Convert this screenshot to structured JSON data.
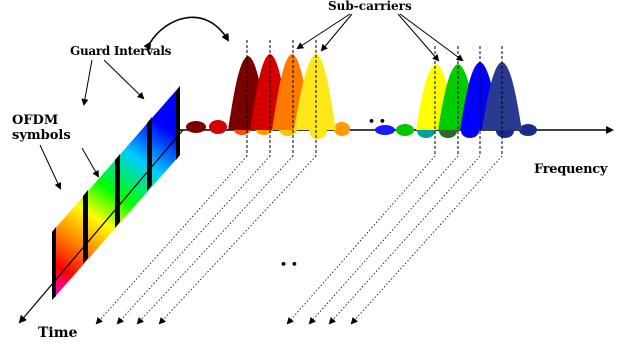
{
  "labels": {
    "subcarriers": "Sub-carriers",
    "guard_intervals": "Guard Intervals",
    "ofdm_line1": "OFDM",
    "ofdm_line2": "symbols",
    "frequency": "Frequency",
    "time": "Time"
  },
  "ellipsis": "• •",
  "colors": {
    "subcarriers_left": [
      "#7a0000",
      "#d40000",
      "#ff2a00",
      "#ff8c00",
      "#ffe81a"
    ],
    "subcarriers_right": [
      "#ffff00",
      "#00c800",
      "#0000ff",
      "#1a2a8a"
    ],
    "spectrum_gradient": [
      "#ff0000",
      "#ff8800",
      "#ffff00",
      "#00ff00",
      "#00ffff",
      "#0000ff",
      "#ff00ff"
    ]
  }
}
